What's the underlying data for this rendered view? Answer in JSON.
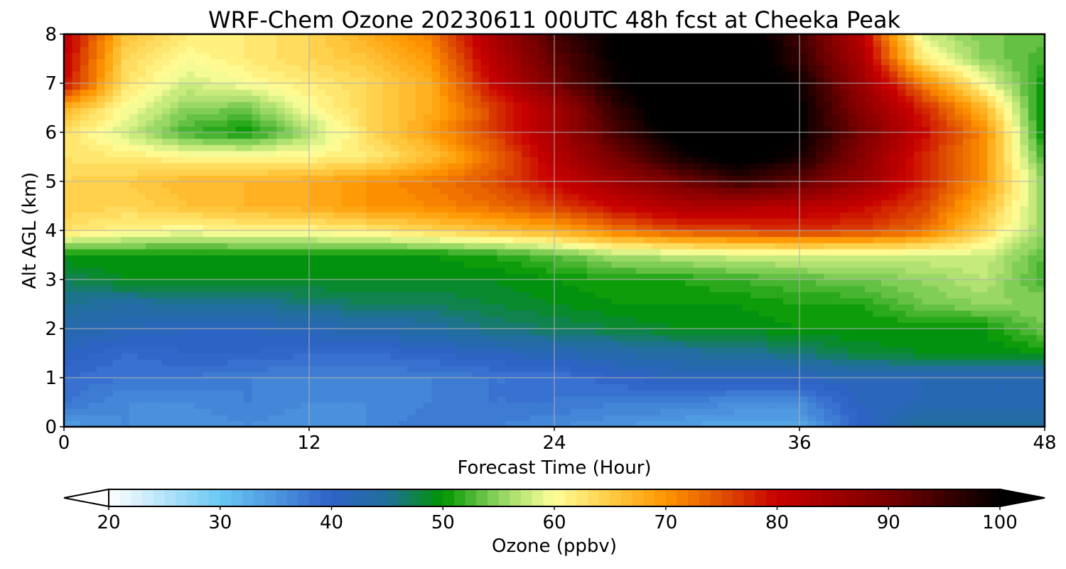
{
  "chart_data": {
    "type": "heatmap",
    "title": "WRF-Chem Ozone  20230611 00UTC 48h fcst at Cheeka Peak",
    "xlabel": "Forecast Time (Hour)",
    "ylabel": "Alt AGL (km)",
    "xlim": [
      0,
      48
    ],
    "ylim": [
      0,
      8
    ],
    "x_ticks": [
      0,
      12,
      24,
      36,
      48
    ],
    "y_ticks": [
      0,
      1,
      2,
      3,
      4,
      5,
      6,
      7,
      8
    ],
    "grid": true,
    "colorbar": {
      "label": "Ozone  (ppbv)",
      "min": 20,
      "max": 100,
      "step": 1,
      "extend": "both",
      "ticks": [
        20,
        30,
        40,
        50,
        60,
        70,
        80,
        90,
        100
      ],
      "colors": [
        {
          "v": 20,
          "c": "#ffffff"
        },
        {
          "v": 30,
          "c": "#6ac8f4"
        },
        {
          "v": 40,
          "c": "#2f62c8"
        },
        {
          "v": 45,
          "c": "#1f6f9a"
        },
        {
          "v": 50,
          "c": "#009600"
        },
        {
          "v": 55,
          "c": "#8fd460"
        },
        {
          "v": 60,
          "c": "#ffff9a"
        },
        {
          "v": 65,
          "c": "#ffcc44"
        },
        {
          "v": 70,
          "c": "#ff9600"
        },
        {
          "v": 75,
          "c": "#e05000"
        },
        {
          "v": 80,
          "c": "#c80000"
        },
        {
          "v": 90,
          "c": "#780000"
        },
        {
          "v": 100,
          "c": "#000000"
        }
      ]
    },
    "x": [
      0,
      3,
      6,
      9,
      12,
      15,
      18,
      21,
      24,
      27,
      30,
      33,
      36,
      39,
      42,
      45,
      48
    ],
    "y": [
      0,
      0.5,
      1,
      1.5,
      2,
      2.5,
      3,
      3.5,
      4,
      4.5,
      5,
      5.5,
      6,
      6.5,
      7,
      7.5,
      8
    ],
    "z": [
      [
        34,
        36,
        35,
        36,
        35,
        36,
        38,
        37,
        36,
        35,
        34,
        33,
        33,
        40,
        45,
        45,
        45
      ],
      [
        38,
        36,
        36,
        37,
        36,
        36,
        37,
        38,
        38,
        37,
        37,
        36,
        36,
        41,
        42,
        42,
        42
      ],
      [
        39,
        38,
        38,
        37,
        37,
        37,
        37,
        38,
        38,
        40,
        41,
        41,
        41,
        42,
        42,
        42,
        42
      ],
      [
        41,
        39,
        40,
        40,
        39,
        39,
        40,
        41,
        42,
        43,
        44,
        45,
        46,
        48,
        49,
        49,
        50
      ],
      [
        43,
        42,
        41,
        41,
        42,
        43,
        44,
        46,
        47,
        48,
        49,
        49,
        50,
        50,
        50,
        50,
        54
      ],
      [
        45,
        44,
        45,
        45,
        46,
        47,
        47,
        48,
        49,
        50,
        50,
        50,
        51,
        51,
        54,
        55,
        55
      ],
      [
        47,
        49,
        49,
        49,
        49,
        49,
        49,
        49,
        50,
        51,
        51,
        52,
        53,
        54,
        55,
        57,
        52
      ],
      [
        50,
        50,
        50,
        50,
        50,
        50,
        50,
        51,
        53,
        56,
        57,
        58,
        58,
        58,
        58,
        58,
        53
      ],
      [
        63,
        61,
        60,
        61,
        61,
        62,
        64,
        66,
        68,
        72,
        75,
        76,
        77,
        76,
        73,
        64,
        55
      ],
      [
        65,
        64,
        66,
        67,
        68,
        70,
        71,
        73,
        76,
        80,
        83,
        83,
        82,
        80,
        76,
        67,
        55
      ],
      [
        64,
        65,
        67,
        67,
        68,
        70,
        72,
        75,
        80,
        85,
        90,
        95,
        92,
        86,
        78,
        70,
        55
      ],
      [
        63,
        62,
        61,
        61,
        61,
        62,
        66,
        73,
        82,
        90,
        98,
        102,
        98,
        88,
        78,
        70,
        52
      ],
      [
        63,
        58,
        52,
        50,
        56,
        64,
        69,
        76,
        84,
        94,
        102,
        104,
        100,
        90,
        80,
        71,
        49
      ],
      [
        68,
        60,
        55,
        54,
        60,
        64,
        68,
        76,
        84,
        96,
        104,
        105,
        100,
        88,
        78,
        67,
        49
      ],
      [
        80,
        63,
        58,
        60,
        62,
        64,
        68,
        80,
        90,
        99,
        104,
        104,
        99,
        86,
        72,
        60,
        50
      ],
      [
        81,
        64,
        60,
        62,
        64,
        66,
        70,
        82,
        92,
        100,
        104,
        104,
        96,
        84,
        62,
        55,
        52
      ],
      [
        82,
        66,
        62,
        62,
        64,
        68,
        72,
        84,
        94,
        101,
        104,
        103,
        95,
        82,
        58,
        54,
        54
      ]
    ]
  }
}
